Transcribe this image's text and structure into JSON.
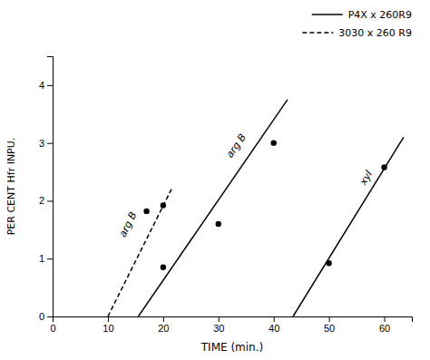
{
  "chart_data": {
    "type": "line",
    "xlabel": "TIME  (min.)",
    "ylabel": "PER CENT Hfr INPU.",
    "xlim": [
      0,
      65
    ],
    "ylim": [
      0,
      4.5
    ],
    "xticks": [
      0,
      10,
      20,
      30,
      40,
      50,
      60
    ],
    "yticks": [
      0,
      1,
      2,
      3,
      4
    ],
    "grid": false,
    "legend": "top right",
    "series": [
      {
        "name": "P4X x 260R9",
        "type": "line",
        "line_style": "solid",
        "color": "#000000",
        "x": [
          15.5,
          42.5
        ],
        "values": [
          0.0,
          3.75
        ]
      },
      {
        "type": "scatter",
        "marker": "circle",
        "color": "#000000",
        "x": [
          20,
          30,
          40
        ],
        "values": [
          0.85,
          1.6,
          3.0
        ]
      },
      {
        "name": "3030 x 260 R9",
        "type": "line",
        "line_style": "dashed",
        "color": "#000000",
        "x": [
          10,
          21.5
        ],
        "values": [
          0.0,
          2.2
        ]
      },
      {
        "type": "scatter",
        "marker": "circle",
        "color": "#000000",
        "x": [
          17,
          20
        ],
        "values": [
          1.82,
          1.92
        ]
      },
      {
        "type": "line",
        "line_style": "solid",
        "color": "#000000",
        "x": [
          43.5,
          63.5
        ],
        "values": [
          0.0,
          3.1
        ]
      },
      {
        "type": "scatter",
        "marker": "circle",
        "color": "#000000",
        "x": [
          50,
          60
        ],
        "values": [
          0.92,
          2.58
        ]
      }
    ],
    "annotations": [
      {
        "text": "arg B",
        "x": 34,
        "y": 2.9
      },
      {
        "text": "arg B",
        "x": 14.5,
        "y": 1.55
      },
      {
        "text": "xyl",
        "x": 57.5,
        "y": 2.35
      }
    ]
  }
}
